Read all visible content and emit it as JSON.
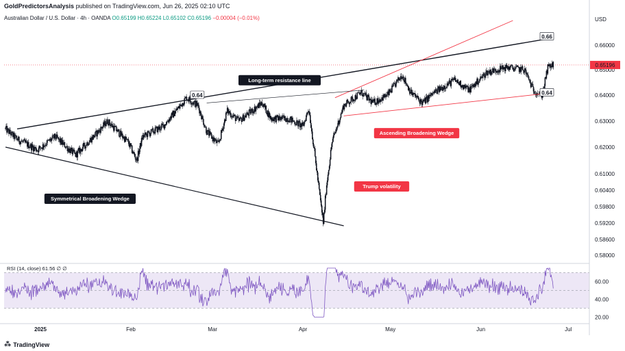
{
  "header": {
    "author": "GoldPredictorsAnalysis",
    "published_text": "published on TradingView.com, Jun 26, 2025 02:10 UTC"
  },
  "symbol": {
    "name": "Australian Dollar / U.S. Dollar · 4h · OANDA",
    "open": "O0.65199",
    "high": "H0.65224",
    "low": "L0.65102",
    "close": "C0.65196",
    "change": "−0.00004 (−0.01%)"
  },
  "currency": "USD",
  "last_price": "0.65196",
  "colors": {
    "up": "#089981",
    "down": "#f23645",
    "candle": "#131722",
    "rsi_line": "#7e57c2",
    "rsi_band": "#ede7f6",
    "trend_red": "#f23645"
  },
  "chart_data": {
    "type": "candlestick",
    "interval": "4h",
    "y_ticks": [
      "0.66000",
      "0.65000",
      "0.64000",
      "0.63000",
      "0.62000",
      "0.61000",
      "0.60400",
      "0.59800",
      "0.59200",
      "0.58600",
      "0.58000"
    ],
    "y_tick_values": [
      0.66,
      0.65,
      0.64,
      0.63,
      0.62,
      0.61,
      0.604,
      0.598,
      0.592,
      0.586,
      0.58
    ],
    "x_ticks": [
      "2025",
      "Feb",
      "Mar",
      "Apr",
      "May",
      "Jun",
      "Jul"
    ],
    "x_tick_dates": [
      "2025-01-01",
      "2025-02-01",
      "2025-03-01",
      "2025-04-01",
      "2025-05-01",
      "2025-06-01",
      "2025-07-01"
    ],
    "date_range": [
      "2024-12-20",
      "2025-06-26"
    ],
    "price_path": [
      [
        "2024-12-20",
        0.627
      ],
      [
        "2024-12-24",
        0.623
      ],
      [
        "2024-12-31",
        0.619
      ],
      [
        "2025-01-06",
        0.624
      ],
      [
        "2025-01-13",
        0.617
      ],
      [
        "2025-01-20",
        0.625
      ],
      [
        "2025-01-24",
        0.63
      ],
      [
        "2025-01-31",
        0.622
      ],
      [
        "2025-02-03",
        0.615
      ],
      [
        "2025-02-05",
        0.624
      ],
      [
        "2025-02-12",
        0.628
      ],
      [
        "2025-02-18",
        0.636
      ],
      [
        "2025-02-20",
        0.639
      ],
      [
        "2025-02-24",
        0.636
      ],
      [
        "2025-02-27",
        0.626
      ],
      [
        "2025-03-03",
        0.621
      ],
      [
        "2025-03-06",
        0.634
      ],
      [
        "2025-03-10",
        0.63
      ],
      [
        "2025-03-18",
        0.637
      ],
      [
        "2025-03-21",
        0.631
      ],
      [
        "2025-03-27",
        0.631
      ],
      [
        "2025-04-01",
        0.628
      ],
      [
        "2025-04-03",
        0.635
      ],
      [
        "2025-04-07",
        0.6
      ],
      [
        "2025-04-08",
        0.592
      ],
      [
        "2025-04-09",
        0.605
      ],
      [
        "2025-04-11",
        0.622
      ],
      [
        "2025-04-15",
        0.636
      ],
      [
        "2025-04-21",
        0.641
      ],
      [
        "2025-04-25",
        0.637
      ],
      [
        "2025-04-30",
        0.64
      ],
      [
        "2025-05-05",
        0.648
      ],
      [
        "2025-05-08",
        0.641
      ],
      [
        "2025-05-12",
        0.637
      ],
      [
        "2025-05-16",
        0.641
      ],
      [
        "2025-05-23",
        0.646
      ],
      [
        "2025-05-28",
        0.642
      ],
      [
        "2025-06-03",
        0.649
      ],
      [
        "2025-06-10",
        0.651
      ],
      [
        "2025-06-16",
        0.65
      ],
      [
        "2025-06-19",
        0.642
      ],
      [
        "2025-06-22",
        0.64
      ],
      [
        "2025-06-24",
        0.651
      ],
      [
        "2025-06-26",
        0.652
      ]
    ],
    "trend_lines": [
      {
        "name": "Long-term resistance line",
        "from": [
          "2024-12-24",
          0.627
        ],
        "to": [
          "2025-06-26",
          0.663
        ]
      },
      {
        "name": "Symmetrical broadening support",
        "from": [
          "2024-12-20",
          0.62
        ],
        "to": [
          "2025-04-15",
          0.591
        ]
      },
      {
        "name": "Ascending wedge upper",
        "from": [
          "2025-04-12",
          0.639
        ],
        "to": [
          "2025-06-12",
          0.67
        ]
      },
      {
        "name": "Ascending wedge lower",
        "from": [
          "2025-04-15",
          0.632
        ],
        "to": [
          "2025-06-26",
          0.641
        ]
      },
      {
        "name": "Inner resistance",
        "from": [
          "2025-02-27",
          0.637
        ],
        "to": [
          "2025-04-22",
          0.642
        ]
      }
    ],
    "level_labels": [
      {
        "text": "0.64",
        "date": "2025-02-20",
        "price": 0.64
      },
      {
        "text": "0.66",
        "date": "2025-06-26",
        "price": 0.6635
      },
      {
        "text": "0.64",
        "date": "2025-06-26",
        "price": 0.641
      }
    ],
    "annotations": [
      {
        "text": "Long-term resistance line",
        "date": "2025-03-24",
        "price": 0.646,
        "style": "dark"
      },
      {
        "text": "Symmetrical Broadening Wedge",
        "date": "2025-01-18",
        "price": 0.601,
        "style": "dark"
      },
      {
        "text": "Ascending Broadening Wedge",
        "date": "2025-05-10",
        "price": 0.6255,
        "style": "red"
      },
      {
        "text": "Trump volatility",
        "date": "2025-04-28",
        "price": 0.6055,
        "style": "red"
      }
    ],
    "rsi": {
      "legend": "RSI (14, close)  61.56  ∅  ∅",
      "y_ticks": [
        "60.00",
        "40.00",
        "20.00"
      ],
      "y_tick_values": [
        60,
        40,
        20
      ],
      "bands": [
        30,
        70
      ],
      "mid": 50
    }
  }
}
